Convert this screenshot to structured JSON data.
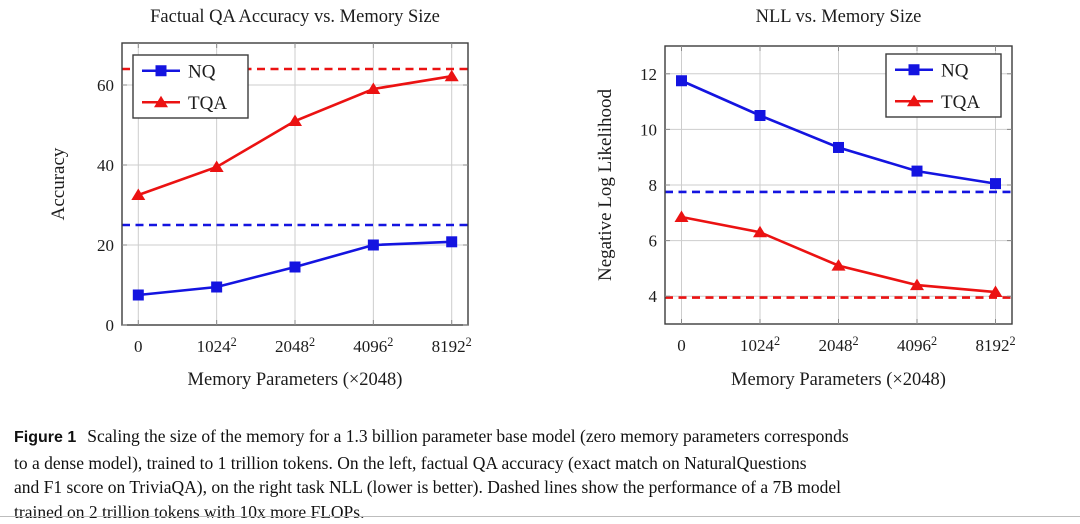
{
  "caption": {
    "label": "Figure 1",
    "lines": [
      "Scaling the size of the memory for a 1.3 billion parameter base model (zero memory parameters corresponds",
      "to a dense model), trained to 1 trillion tokens. On the left, factual QA accuracy (exact match on NaturalQuestions",
      "and F1 score on TriviaQA), on the right task NLL (lower is better). Dashed lines show the performance of a 7B model",
      "trained on 2 trillion tokens with 10x more FLOPs."
    ]
  },
  "colors": {
    "nq_blue": "#1414E0",
    "tqa_red": "#EB1212",
    "grid": "#CDCDCD",
    "frame": "#3C3C3C"
  },
  "chart_data": [
    {
      "id": "qa-accuracy",
      "type": "line",
      "title": "Factual QA Accuracy vs. Memory Size",
      "xlabel": "Memory Parameters (×2048)",
      "ylabel": "Accuracy",
      "x_ticklabels": [
        "0",
        "1024²",
        "2048²",
        "4096²",
        "8192²"
      ],
      "y_ticks": [
        0,
        20,
        40,
        60
      ],
      "ylim": [
        0,
        70.5
      ],
      "grid": true,
      "legend_position": "top-left",
      "series": [
        {
          "name": "NQ",
          "marker": "square",
          "color": "#1414E0",
          "values": [
            7.5,
            9.5,
            14.5,
            20.0,
            20.8
          ]
        },
        {
          "name": "TQA",
          "marker": "triangle",
          "color": "#EB1212",
          "values": [
            32.5,
            39.5,
            51.0,
            59.0,
            62.2
          ]
        }
      ],
      "dashed_reference_lines": [
        {
          "color": "#EB1212",
          "value": 64.0
        },
        {
          "color": "#1414E0",
          "value": 25.0
        }
      ]
    },
    {
      "id": "nll",
      "type": "line",
      "title": "NLL vs. Memory Size",
      "xlabel": "Memory Parameters (×2048)",
      "ylabel": "Negative Log Likelihood",
      "x_ticklabels": [
        "0",
        "1024²",
        "2048²",
        "4096²",
        "8192²"
      ],
      "y_ticks": [
        4,
        6,
        8,
        10,
        12
      ],
      "ylim": [
        3,
        13
      ],
      "grid": true,
      "legend_position": "top-right",
      "series": [
        {
          "name": "NQ",
          "marker": "square",
          "color": "#1414E0",
          "values": [
            11.75,
            10.5,
            9.35,
            8.5,
            8.05
          ]
        },
        {
          "name": "TQA",
          "marker": "triangle",
          "color": "#EB1212",
          "values": [
            6.85,
            6.3,
            5.1,
            4.4,
            4.15
          ]
        }
      ],
      "dashed_reference_lines": [
        {
          "color": "#1414E0",
          "value": 7.75
        },
        {
          "color": "#EB1212",
          "value": 3.95
        }
      ]
    }
  ]
}
